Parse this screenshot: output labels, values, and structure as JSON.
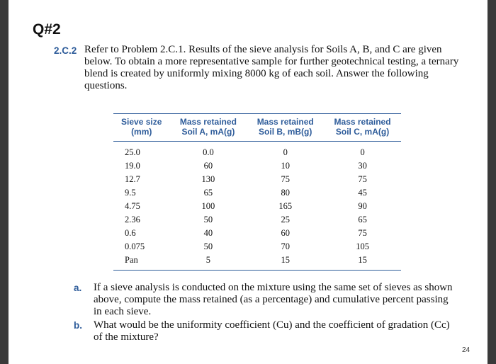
{
  "heading": "Q#2",
  "problem": {
    "number": "2.C.2",
    "text": "Refer to Problem 2.C.1. Results of the sieve analysis for Soils A, B, and C are given below. To obtain a more representative sample for further geotechnical testing, a ternary blend is created by uniformly mixing 8000 kg of each soil. Answer the following questions."
  },
  "table": {
    "headers": [
      {
        "line1": "Sieve size",
        "line2": "(mm)"
      },
      {
        "line1": "Mass retained",
        "line2": "Soil A, mA(g)"
      },
      {
        "line1": "Mass retained",
        "line2": "Soil B, mB(g)"
      },
      {
        "line1": "Mass retained",
        "line2": "Soil C, mA(g)"
      }
    ],
    "rows": [
      [
        "25.0",
        "0.0",
        "0",
        "0"
      ],
      [
        "19.0",
        "60",
        "10",
        "30"
      ],
      [
        "12.7",
        "130",
        "75",
        "75"
      ],
      [
        "9.5",
        "65",
        "80",
        "45"
      ],
      [
        "4.75",
        "100",
        "165",
        "90"
      ],
      [
        "2.36",
        "50",
        "25",
        "65"
      ],
      [
        "0.6",
        "40",
        "60",
        "75"
      ],
      [
        "0.075",
        "50",
        "70",
        "105"
      ],
      [
        "Pan",
        "5",
        "15",
        "15"
      ]
    ]
  },
  "questions": [
    {
      "letter": "a.",
      "text": "If a sieve analysis is conducted on the mixture using the same set of sieves as shown above, compute the mass retained (as a percentage) and cumulative percent passing in each sieve."
    },
    {
      "letter": "b.",
      "text": "What would be the uniformity coefficient (Cu) and the coefficient of gradation (Cc) of the mixture?"
    }
  ],
  "page_number": "24"
}
